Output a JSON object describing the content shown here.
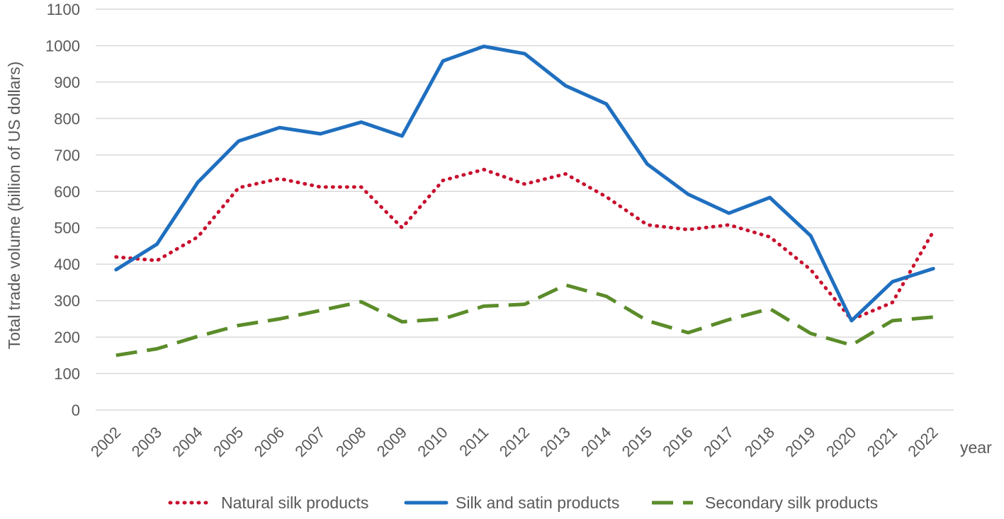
{
  "chart_data": {
    "type": "line",
    "title": "",
    "xlabel": "year",
    "ylabel": "Total trade volume (billion of US dollars)",
    "ylim": [
      0,
      1100
    ],
    "yticks": [
      0,
      100,
      200,
      300,
      400,
      500,
      600,
      700,
      800,
      900,
      1000,
      1100
    ],
    "grid": true,
    "legend_position": "bottom",
    "categories": [
      "2002",
      "2003",
      "2004",
      "2005",
      "2006",
      "2007",
      "2008",
      "2009",
      "2010",
      "2011",
      "2012",
      "2013",
      "2014",
      "2015",
      "2016",
      "2017",
      "2018",
      "2019",
      "2020",
      "2021",
      "2022"
    ],
    "series": [
      {
        "name": "Natural silk products",
        "style": "dotted",
        "color": "#c8102e",
        "values": [
          420,
          410,
          475,
          610,
          635,
          612,
          612,
          500,
          630,
          660,
          620,
          648,
          585,
          508,
          495,
          508,
          475,
          385,
          248,
          295,
          490
        ]
      },
      {
        "name": "Silk and satin products",
        "style": "solid",
        "color": "#1f6fbf",
        "values": [
          385,
          455,
          625,
          738,
          775,
          758,
          790,
          752,
          958,
          998,
          978,
          890,
          840,
          675,
          592,
          540,
          583,
          478,
          245,
          352,
          388
        ]
      },
      {
        "name": "Secondary silk products",
        "style": "dashed",
        "color": "#5b8c2a",
        "values": [
          150,
          168,
          202,
          232,
          250,
          273,
          297,
          242,
          250,
          285,
          290,
          343,
          312,
          245,
          212,
          248,
          278,
          210,
          178,
          245,
          255
        ]
      }
    ]
  }
}
